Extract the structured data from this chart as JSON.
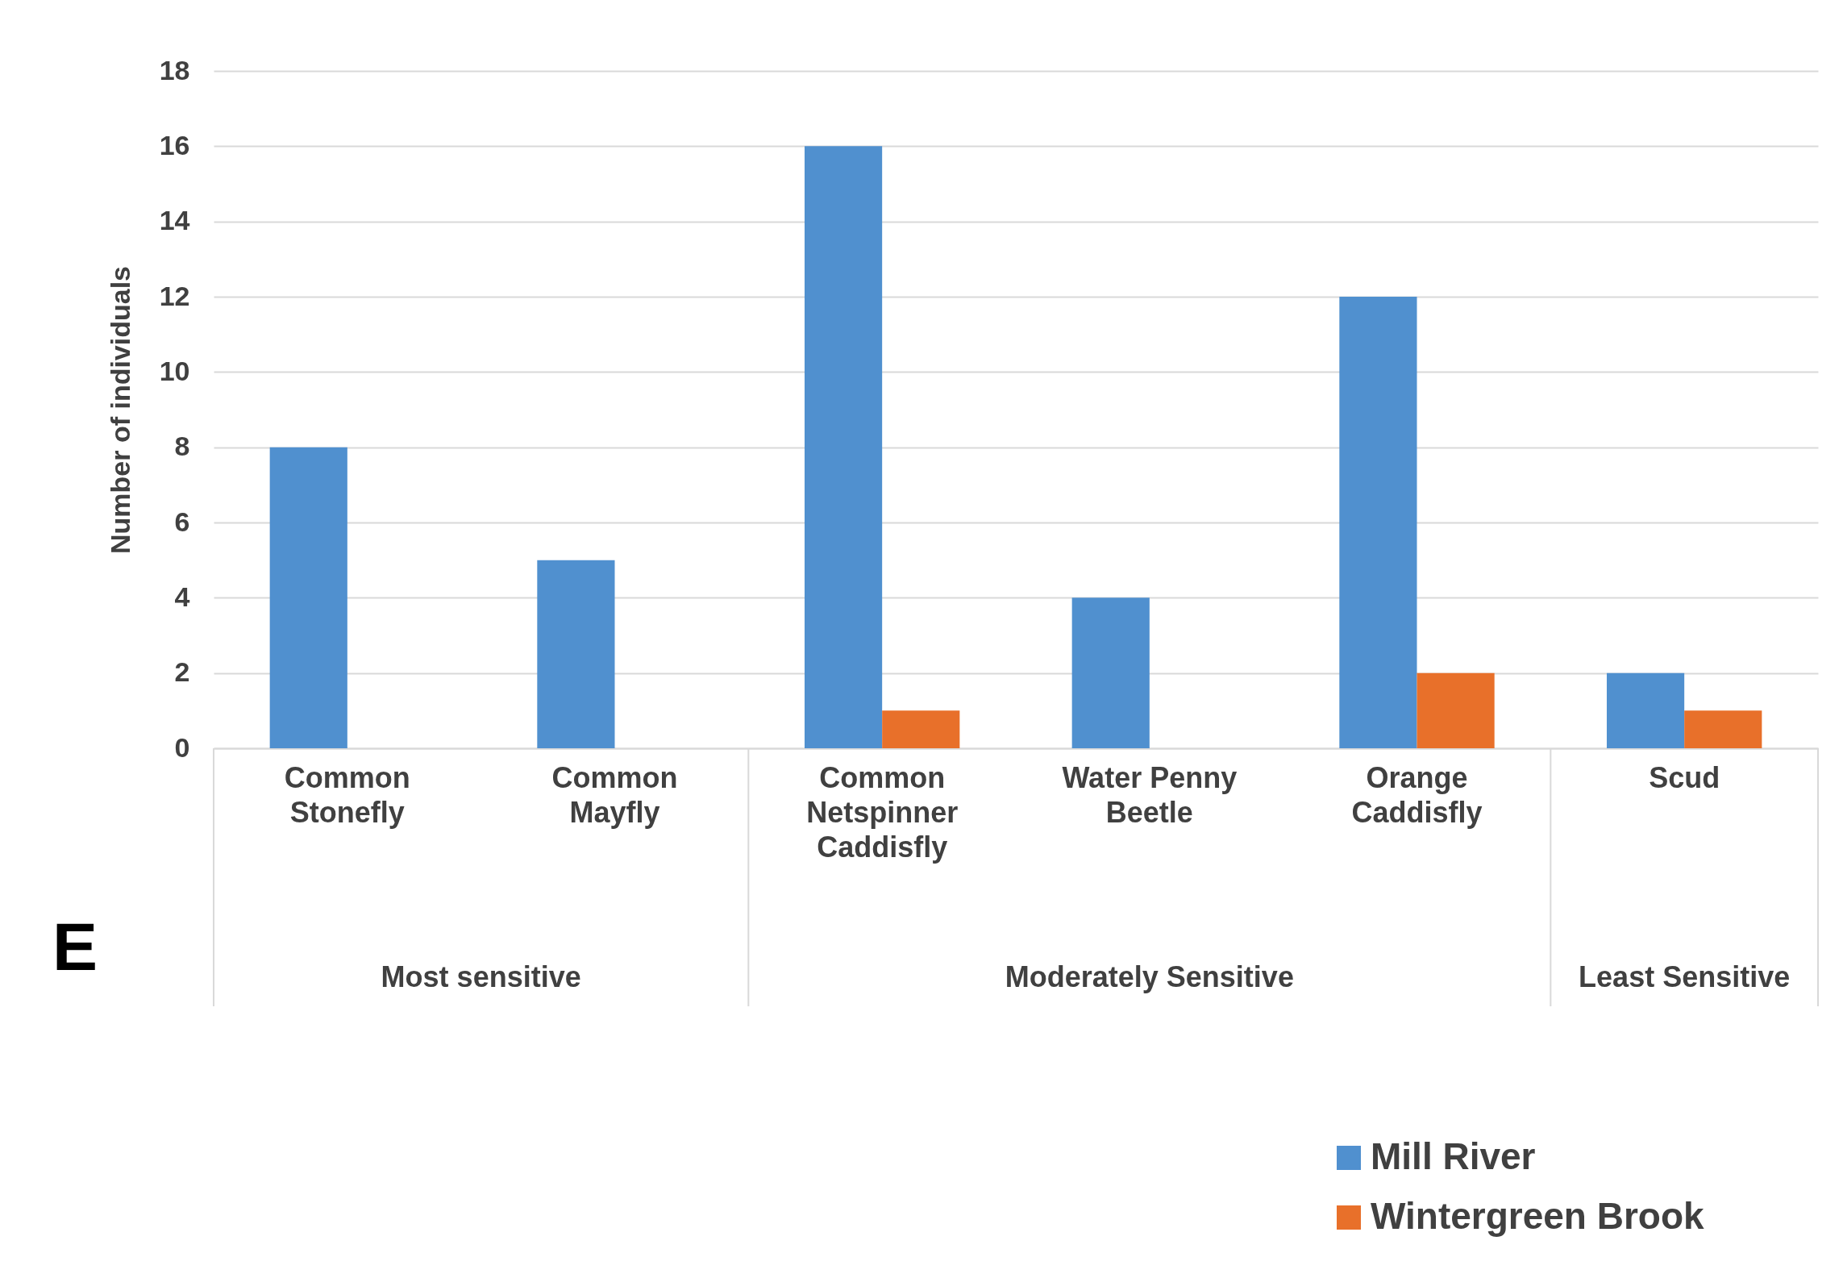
{
  "chart_data": {
    "type": "bar",
    "ylabel": "Number of individuals",
    "categories": [
      "Common Stonefly",
      "Common Mayfly",
      "Common Netspinner Caddisfly",
      "Water Penny Beetle",
      "Orange Caddisfly",
      "Scud"
    ],
    "series": [
      {
        "name": "Mill River",
        "color": "#5090cf",
        "values": [
          8,
          5,
          16,
          4,
          12,
          2
        ]
      },
      {
        "name": "Wintergreen Brook",
        "color": "#e8702a",
        "values": [
          null,
          null,
          1,
          null,
          2,
          1
        ]
      }
    ],
    "ylim": [
      0,
      18
    ],
    "yticks": [
      0,
      2,
      4,
      6,
      8,
      10,
      12,
      14,
      16,
      18
    ],
    "grid": "y",
    "legend": "bottom right",
    "annotations": [
      "Most sensitive",
      "Moderately  Sensitive",
      "Least Sensitive",
      "E"
    ]
  }
}
